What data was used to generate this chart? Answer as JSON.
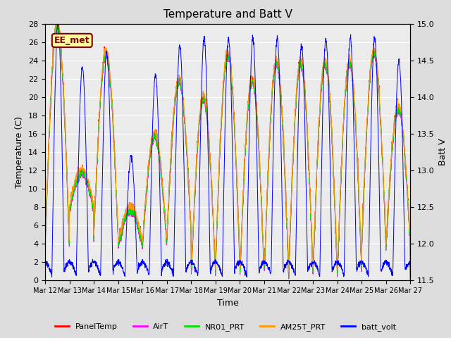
{
  "title": "Temperature and Batt V",
  "xlabel": "Time",
  "ylabel_left": "Temperature (C)",
  "ylabel_right": "Batt V",
  "annotation_text": "EE_met",
  "annotation_bg": "#ffff99",
  "annotation_border": "#800000",
  "ylim_left": [
    0,
    28
  ],
  "ylim_right": [
    11.5,
    15.0
  ],
  "yticks_left": [
    0,
    2,
    4,
    6,
    8,
    10,
    12,
    14,
    16,
    18,
    20,
    22,
    24,
    26,
    28
  ],
  "yticks_right": [
    11.5,
    12.0,
    12.5,
    13.0,
    13.5,
    14.0,
    14.5,
    15.0
  ],
  "xtick_labels": [
    "Mar 12",
    "Mar 13",
    "Mar 14",
    "Mar 15",
    "Mar 16",
    "Mar 17",
    "Mar 18",
    "Mar 19",
    "Mar 20",
    "Mar 21",
    "Mar 22",
    "Mar 23",
    "Mar 24",
    "Mar 25",
    "Mar 26",
    "Mar 27"
  ],
  "bg_color": "#dcdcdc",
  "plot_bg_color": "#ebebeb",
  "grid_color": "white",
  "colors": {
    "PanelTemp": "#ff0000",
    "AirT": "#ff00ff",
    "NR01_PRT": "#00dd00",
    "AM25T_PRT": "#ff9900",
    "batt_volt": "#0000ff"
  },
  "legend_labels": [
    "PanelTemp",
    "AirT",
    "NR01_PRT",
    "AM25T_PRT",
    "batt_volt"
  ]
}
